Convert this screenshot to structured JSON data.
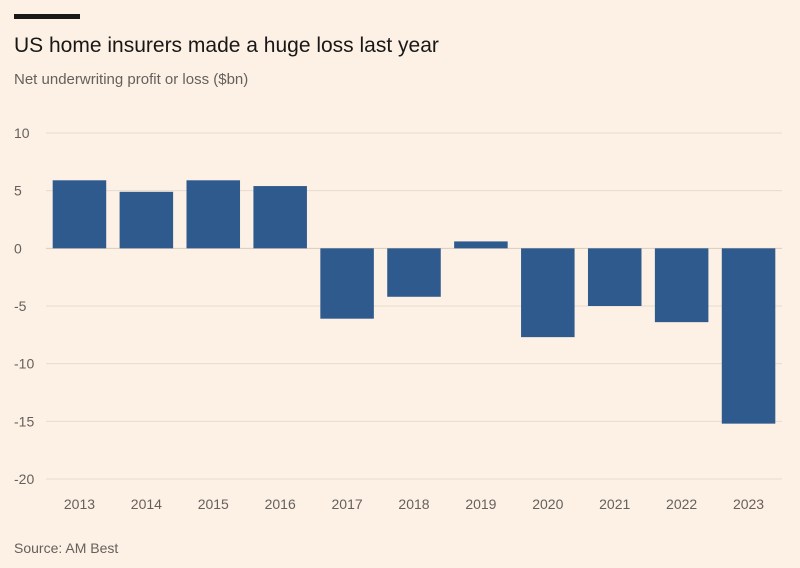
{
  "header": {
    "title": "US home insurers made a huge loss last year",
    "subtitle": "Net underwriting profit or loss ($bn)"
  },
  "footer": {
    "source": "Source: AM Best"
  },
  "colors": {
    "background": "#FDF1E5",
    "bar": "#2F5A8E",
    "grid": "#E6DBD0",
    "axis": "#66605C",
    "text": "#33302E"
  },
  "chart_data": {
    "type": "bar",
    "title": "US home insurers made a huge loss last year",
    "subtitle": "Net underwriting profit or loss ($bn)",
    "xlabel": "",
    "ylabel": "Net underwriting profit or loss ($bn)",
    "categories": [
      "2013",
      "2014",
      "2015",
      "2016",
      "2017",
      "2018",
      "2019",
      "2020",
      "2021",
      "2022",
      "2023"
    ],
    "values": [
      5.9,
      4.9,
      5.9,
      5.4,
      -6.1,
      -4.2,
      0.6,
      -7.7,
      -5.0,
      -6.4,
      -15.2
    ],
    "ylim": [
      -20,
      10
    ],
    "yticks": [
      10,
      5,
      0,
      -5,
      -10,
      -15,
      -20
    ],
    "grid": true,
    "legend": "none"
  }
}
